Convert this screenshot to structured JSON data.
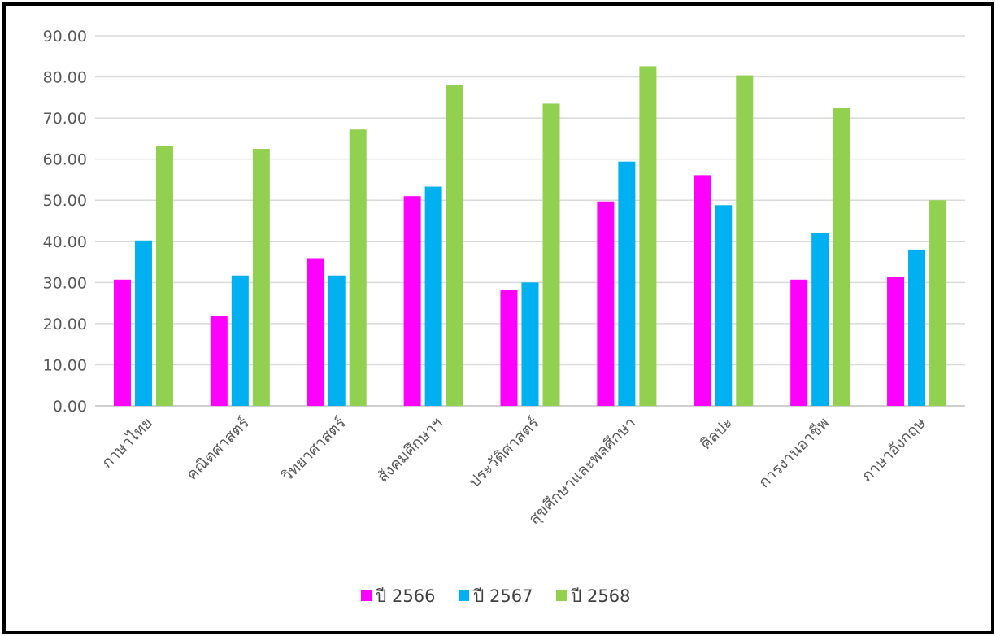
{
  "chart_data": {
    "type": "bar",
    "title": "",
    "xlabel": "",
    "ylabel": "",
    "ylim": [
      0,
      90
    ],
    "yticks": [
      "0.00",
      "10.00",
      "20.00",
      "30.00",
      "40.00",
      "50.00",
      "60.00",
      "70.00",
      "80.00",
      "90.00"
    ],
    "grid": true,
    "legend_position": "bottom",
    "categories": [
      "ภาษาไทย",
      "คณิตศาสตร์",
      "วิทยาศาสตร์",
      "สังคมศึกษาฯ",
      "ประวัติศาสตร์",
      "สุขศึกษาและพลศึกษา",
      "ศิลปะ",
      "การงานอาชีพ",
      "ภาษาอังกฤษ"
    ],
    "series": [
      {
        "name": "ปี 2566",
        "color": "#ff00ff",
        "values": [
          30.7,
          21.8,
          35.9,
          51.0,
          28.2,
          49.7,
          56.1,
          30.7,
          31.3
        ]
      },
      {
        "name": "ปี 2567",
        "color": "#00b0f0",
        "values": [
          40.2,
          31.7,
          31.7,
          53.3,
          30.0,
          59.4,
          48.8,
          42.0,
          38.0
        ]
      },
      {
        "name": "ปี 2568",
        "color": "#92d050",
        "values": [
          63.1,
          62.5,
          67.2,
          78.1,
          73.5,
          82.6,
          80.4,
          72.4,
          50.0
        ]
      }
    ]
  }
}
